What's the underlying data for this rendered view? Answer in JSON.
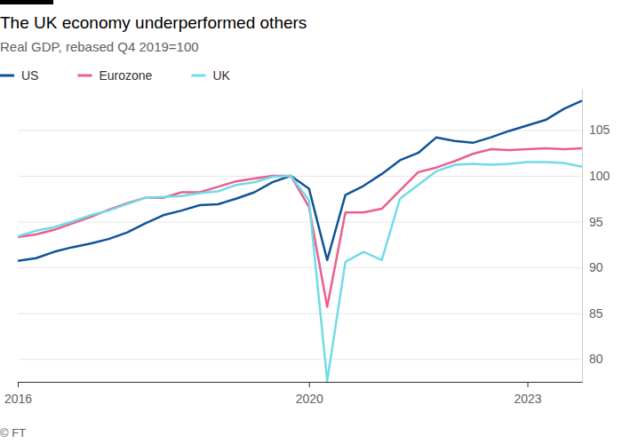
{
  "chart_data": {
    "type": "line",
    "title": "The UK economy underperformed others",
    "subtitle": "Real GDP, rebased Q4 2019=100",
    "source": "© FT",
    "x": [
      2016,
      2016.25,
      2016.5,
      2016.75,
      2017,
      2017.25,
      2017.5,
      2017.75,
      2018,
      2018.25,
      2018.5,
      2018.75,
      2019,
      2019.25,
      2019.5,
      2019.75,
      2020,
      2020.25,
      2020.5,
      2020.75,
      2021,
      2021.25,
      2021.5,
      2021.75,
      2022,
      2022.25,
      2022.5,
      2022.75,
      2023,
      2023.25,
      2023.5,
      2023.75
    ],
    "xlim": [
      2016,
      2023.75
    ],
    "xticks": [
      2016,
      2020,
      2023
    ],
    "ylim": [
      77.5,
      109.5
    ],
    "yticks": [
      80,
      85,
      90,
      95,
      100,
      105
    ],
    "grid": true,
    "legend": "top",
    "series": [
      {
        "name": "US",
        "color": "#0f5499",
        "values": [
          90.7,
          91.0,
          91.7,
          92.2,
          92.6,
          93.1,
          93.8,
          94.8,
          95.7,
          96.2,
          96.8,
          96.9,
          97.5,
          98.2,
          99.3,
          100.0,
          98.6,
          90.8,
          97.9,
          98.9,
          100.2,
          101.7,
          102.5,
          104.2,
          103.8,
          103.6,
          104.2,
          104.9,
          105.5,
          106.1,
          107.3,
          108.2
        ]
      },
      {
        "name": "Eurozone",
        "color": "#eb5e8d",
        "values": [
          93.3,
          93.6,
          94.1,
          94.8,
          95.5,
          96.3,
          97.0,
          97.6,
          97.6,
          98.2,
          98.2,
          98.8,
          99.4,
          99.7,
          100.0,
          100.0,
          96.6,
          85.7,
          96.0,
          96.0,
          96.4,
          98.4,
          100.4,
          100.9,
          101.6,
          102.4,
          102.9,
          102.8,
          102.9,
          103.0,
          102.9,
          103.0
        ]
      },
      {
        "name": "UK",
        "color": "#70dce6",
        "values": [
          93.4,
          94.0,
          94.4,
          95.0,
          95.7,
          96.2,
          96.9,
          97.6,
          97.7,
          97.8,
          98.1,
          98.3,
          99.0,
          99.3,
          99.9,
          100.0,
          97.3,
          77.6,
          90.6,
          91.7,
          90.8,
          97.5,
          99.0,
          100.5,
          101.2,
          101.3,
          101.2,
          101.3,
          101.5,
          101.5,
          101.4,
          101.0
        ]
      }
    ]
  }
}
